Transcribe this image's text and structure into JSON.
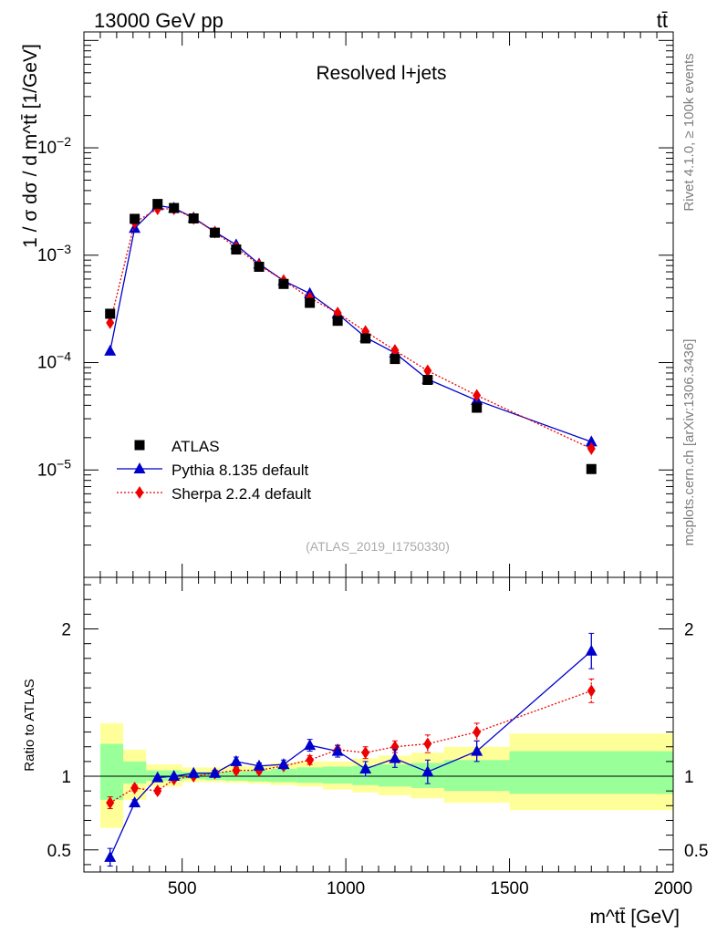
{
  "header": {
    "energy_label": "13000 GeV pp",
    "process_label": "tt̄"
  },
  "side_labels": {
    "rivet": "Rivet 4.1.0, ≥ 100k events",
    "mcplots": "mcplots.cern.ch [arXiv:1306.3436]"
  },
  "chart_data": [
    {
      "type": "scatter",
      "panel": "main",
      "title": "Resolved l+jets",
      "watermark": "(ATLAS_2019_I1750330)",
      "ylabel": "1 / σ dσ / d m^tt̄ [1/GeV]",
      "xlabel": "",
      "yscale": "log",
      "xlim": [
        200,
        2000
      ],
      "ylim": [
        1e-06,
        0.12
      ],
      "y_tick_labels": [
        "10^-5",
        "10^-4",
        "10^-3",
        "10^-2"
      ],
      "legend_position": "bottom-left",
      "x": [
        280,
        355,
        425,
        475,
        535,
        600,
        665,
        735,
        810,
        890,
        975,
        1060,
        1150,
        1250,
        1400,
        1750
      ],
      "series": [
        {
          "name": "ATLAS",
          "marker": "square",
          "color": "#000000",
          "values": [
            0.000285,
            0.00218,
            0.003,
            0.00275,
            0.0022,
            0.00162,
            0.00113,
            0.00078,
            0.00054,
            0.00036,
            0.000245,
            0.000168,
            0.000108,
            6.9e-05,
            3.8e-05,
            1.02e-05
          ]
        },
        {
          "name": "Pythia 8.135 default",
          "marker": "triangle",
          "line": "solid",
          "color": "#0000cc",
          "values": [
            0.000128,
            0.00178,
            0.0029,
            0.00275,
            0.00223,
            0.00165,
            0.00125,
            0.00083,
            0.00058,
            0.00044,
            0.000285,
            0.000172,
            0.000123,
            7e-05,
            4.45e-05,
            1.83e-05
          ]
        },
        {
          "name": "Sherpa 2.2.4 default",
          "marker": "diamond",
          "line": "dotted",
          "color": "#ee0000",
          "values": [
            0.000235,
            0.00202,
            0.0027,
            0.0027,
            0.0022,
            0.00164,
            0.00118,
            0.00081,
            0.00058,
            0.0004,
            0.00029,
            0.000195,
            0.00013,
            8.4e-05,
            4.95e-05,
            1.58e-05
          ]
        }
      ]
    },
    {
      "type": "scatter",
      "panel": "ratio",
      "ylabel": "Ratio to ATLAS",
      "xlabel": "m^tt̄ [GeV]",
      "xlim": [
        200,
        2000
      ],
      "ylim": [
        0.35,
        2.35
      ],
      "x_ticks": [
        500,
        1000,
        1500,
        2000
      ],
      "y_ticks": [
        0.5,
        1,
        2
      ],
      "reference_line": 1,
      "uncertainty_bands": [
        {
          "name": "outer",
          "color": "#ffff99",
          "edges": [
            250,
            320,
            390,
            500,
            570,
            630,
            700,
            770,
            850,
            930,
            1020,
            1100,
            1200,
            1300,
            1500,
            2000
          ],
          "low": [
            0.65,
            0.84,
            0.93,
            0.96,
            0.96,
            0.955,
            0.95,
            0.94,
            0.93,
            0.91,
            0.89,
            0.87,
            0.85,
            0.82,
            0.77
          ],
          "high": [
            1.36,
            1.18,
            1.08,
            1.06,
            1.06,
            1.07,
            1.07,
            1.09,
            1.1,
            1.1,
            1.12,
            1.14,
            1.16,
            1.2,
            1.29
          ]
        },
        {
          "name": "inner",
          "color": "#99ff99",
          "edges": [
            250,
            320,
            390,
            500,
            570,
            630,
            700,
            770,
            850,
            930,
            1020,
            1100,
            1200,
            1300,
            1500,
            2000
          ],
          "low": [
            0.84,
            0.95,
            0.97,
            0.98,
            0.975,
            0.97,
            0.965,
            0.96,
            0.955,
            0.95,
            0.94,
            0.93,
            0.92,
            0.9,
            0.88
          ],
          "high": [
            1.22,
            1.1,
            1.04,
            1.03,
            1.03,
            1.035,
            1.04,
            1.05,
            1.06,
            1.065,
            1.07,
            1.08,
            1.09,
            1.11,
            1.17
          ]
        }
      ],
      "x": [
        280,
        355,
        425,
        475,
        535,
        600,
        665,
        735,
        810,
        890,
        975,
        1060,
        1150,
        1250,
        1400,
        1750
      ],
      "series": [
        {
          "name": "Pythia 8.135 default",
          "marker": "triangle",
          "line": "solid",
          "color": "#0000cc",
          "values": [
            0.45,
            0.82,
            0.99,
            1.0,
            1.02,
            1.02,
            1.1,
            1.07,
            1.08,
            1.21,
            1.17,
            1.05,
            1.12,
            1.03,
            1.17,
            1.85
          ],
          "errors": [
            0.06,
            0.02,
            0.01,
            0.01,
            0.01,
            0.02,
            0.03,
            0.02,
            0.03,
            0.04,
            0.04,
            0.05,
            0.06,
            0.08,
            0.07,
            0.12
          ]
        },
        {
          "name": "Sherpa 2.2.4 default",
          "marker": "diamond",
          "line": "dotted",
          "color": "#ee0000",
          "values": [
            0.82,
            0.92,
            0.9,
            0.98,
            1.0,
            1.02,
            1.04,
            1.04,
            1.07,
            1.11,
            1.18,
            1.16,
            1.2,
            1.22,
            1.3,
            1.58
          ],
          "errors": [
            0.04,
            0.02,
            0.02,
            0.01,
            0.01,
            0.02,
            0.02,
            0.02,
            0.02,
            0.03,
            0.03,
            0.04,
            0.04,
            0.06,
            0.06,
            0.08
          ]
        }
      ]
    }
  ]
}
